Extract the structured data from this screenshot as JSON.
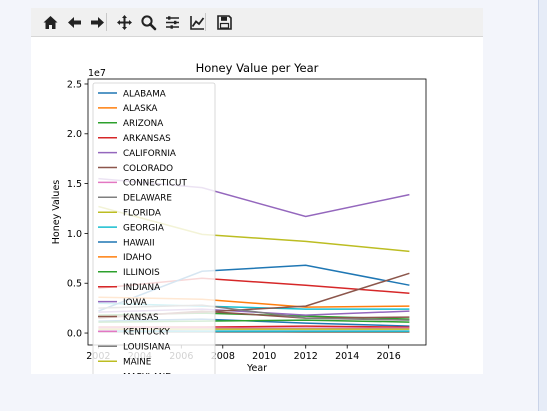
{
  "toolbar": {
    "buttons": [
      {
        "name": "home-icon",
        "icon": "home"
      },
      {
        "name": "back-icon",
        "icon": "back"
      },
      {
        "name": "forward-icon",
        "icon": "forward"
      },
      {
        "name": "pan-icon",
        "icon": "pan"
      },
      {
        "name": "zoom-icon",
        "icon": "zoom"
      },
      {
        "name": "configure-subplots-icon",
        "icon": "subplots"
      },
      {
        "name": "edit-axis-icon",
        "icon": "axes"
      },
      {
        "name": "save-icon",
        "icon": "save"
      }
    ]
  },
  "chart_data": {
    "type": "line",
    "title": "Honey Value per Year",
    "xlabel": "Year",
    "ylabel": "Honey Values",
    "y_offset_label": "1e7",
    "xlim": [
      2001.5,
      2017.8
    ],
    "ylim": [
      -0.12,
      2.55
    ],
    "x_ticks": [
      2002,
      2004,
      2006,
      2008,
      2010,
      2012,
      2014,
      2016
    ],
    "x_tick_labels": [
      "2002",
      "2004",
      "2006",
      "2008",
      "2010",
      "2012",
      "2014",
      "2016"
    ],
    "y_ticks": [
      0.0,
      0.5,
      1.0,
      1.5,
      2.0,
      2.5
    ],
    "y_tick_labels": [
      "0.0",
      "0.5",
      "1.0",
      "1.5",
      "2.0",
      "2.5"
    ],
    "y_unit_multiplier": 10000000,
    "x": [
      2002,
      2007,
      2012,
      2017
    ],
    "grid": false,
    "legend_position": "upper left",
    "series": [
      {
        "name": "ALABAMA",
        "color": "#1f77b4",
        "values": [
          0.12,
          0.14,
          0.1,
          0.07
        ]
      },
      {
        "name": "ALASKA",
        "color": "#ff7f0e",
        "values": [
          0.02,
          0.02,
          0.01,
          0.01
        ]
      },
      {
        "name": "ARIZONA",
        "color": "#2ca02c",
        "values": [
          0.18,
          0.2,
          0.17,
          0.14
        ]
      },
      {
        "name": "ARKANSAS",
        "color": "#d62728",
        "values": [
          0.45,
          0.55,
          0.48,
          0.4
        ]
      },
      {
        "name": "CALIFORNIA",
        "color": "#9467bd",
        "values": [
          1.55,
          1.46,
          1.17,
          1.39
        ]
      },
      {
        "name": "COLORADO",
        "color": "#8c564b",
        "values": [
          0.15,
          0.22,
          0.15,
          0.16
        ]
      },
      {
        "name": "CONNECTICUT",
        "color": "#e377c2",
        "values": [
          0.03,
          0.02,
          0.02,
          0.02
        ]
      },
      {
        "name": "DELAWARE",
        "color": "#7f7f7f",
        "values": [
          0.01,
          0.01,
          0.01,
          0.01
        ]
      },
      {
        "name": "FLORIDA",
        "color": "#bcbd22",
        "values": [
          1.27,
          0.99,
          0.92,
          0.82
        ]
      },
      {
        "name": "GEORGIA",
        "color": "#17becf",
        "values": [
          0.3,
          0.27,
          0.24,
          0.24
        ]
      },
      {
        "name": "HAWAII",
        "color": "#1f77b4",
        "values": [
          0.22,
          0.62,
          0.68,
          0.48
        ]
      },
      {
        "name": "IDAHO",
        "color": "#ff7f0e",
        "values": [
          0.36,
          0.34,
          0.26,
          0.27
        ]
      },
      {
        "name": "ILLINOIS",
        "color": "#2ca02c",
        "values": [
          0.11,
          0.12,
          0.13,
          0.11
        ]
      },
      {
        "name": "INDIANA",
        "color": "#d62728",
        "values": [
          0.06,
          0.06,
          0.07,
          0.06
        ]
      },
      {
        "name": "IOWA",
        "color": "#9467bd",
        "values": [
          0.21,
          0.24,
          0.18,
          0.22
        ]
      },
      {
        "name": "KANSAS",
        "color": "#8c564b",
        "values": [
          0.16,
          0.21,
          0.27,
          0.6
        ]
      },
      {
        "name": "KENTUCKY",
        "color": "#e377c2",
        "values": [
          0.05,
          0.05,
          0.05,
          0.05
        ]
      },
      {
        "name": "LOUISIANA",
        "color": "#7f7f7f",
        "values": [
          0.25,
          0.28,
          0.15,
          0.13
        ]
      },
      {
        "name": "MAINE",
        "color": "#bcbd22",
        "values": [
          0.04,
          0.04,
          0.04,
          0.04
        ]
      },
      {
        "name": "MARYLAND",
        "color": "#17becf",
        "values": [
          0.02,
          0.02,
          0.02,
          0.02
        ]
      }
    ]
  }
}
